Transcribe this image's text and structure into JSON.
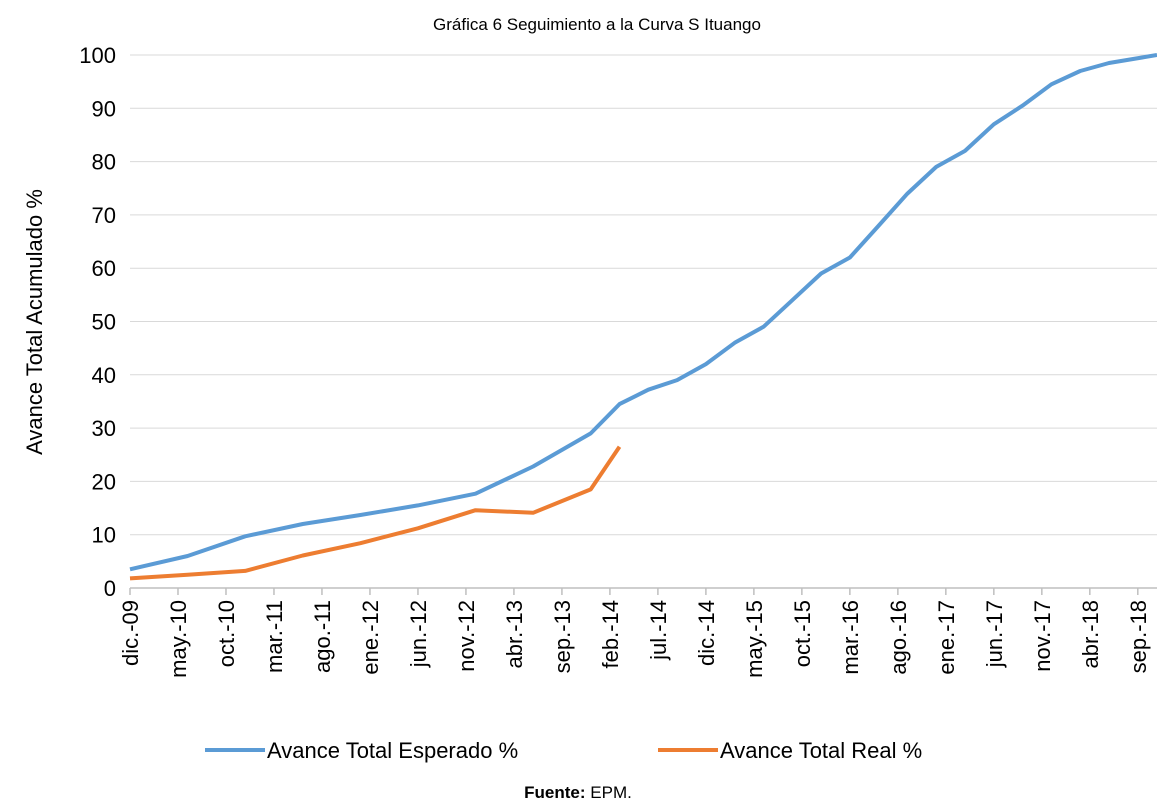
{
  "chart_data": {
    "type": "line",
    "title": "Gráfica 6 Seguimiento a la Curva S Ituango",
    "y_label": "Avance Total Acumulado %",
    "ylim": [
      0,
      100
    ],
    "yticks": [
      0,
      10,
      20,
      30,
      40,
      50,
      60,
      70,
      80,
      90,
      100
    ],
    "grid": true,
    "xlim": [
      "dic.-09",
      "nov.-18"
    ],
    "xticks": [
      "dic.-09",
      "may.-10",
      "oct.-10",
      "mar.-11",
      "ago.-11",
      "ene.-12",
      "jun.-12",
      "nov.-12",
      "abr.-13",
      "sep.-13",
      "feb.-14",
      "jul.-14",
      "dic.-14",
      "may.-15",
      "oct.-15",
      "mar.-16",
      "ago.-16",
      "ene.-17",
      "jun.-17",
      "nov.-17",
      "abr.-18",
      "sep.-18"
    ],
    "legend": "bottom",
    "series": [
      {
        "name": "Avance Total Esperado %",
        "color": "#5b9bd5",
        "x": [
          "dic.-09",
          "jun.-10",
          "dic.-10",
          "jun.-11",
          "dic.-11",
          "jun.-12",
          "dic.-12",
          "jun.-13",
          "dic.-13",
          "mar.-14",
          "jun.-14",
          "sep.-14",
          "dic.-14",
          "mar.-15",
          "jun.-15",
          "sep.-15",
          "dic.-15",
          "mar.-16",
          "jun.-16",
          "sep.-16",
          "dic.-16",
          "mar.-17",
          "jun.-17",
          "sep.-17",
          "dic.-17",
          "mar.-18",
          "jun.-18",
          "nov.-18"
        ],
        "values": [
          3.5,
          6,
          9.7,
          12,
          13.7,
          15.5,
          17.7,
          22.8,
          29,
          34.5,
          37.2,
          39,
          42,
          46,
          49,
          54,
          59,
          62,
          68,
          74,
          79,
          82,
          87,
          90.5,
          94.5,
          97,
          98.5,
          100
        ]
      },
      {
        "name": "Avance Total Real %",
        "color": "#ed7d31",
        "x": [
          "dic.-09",
          "jun.-10",
          "dic.-10",
          "jun.-11",
          "dic.-11",
          "jun.-12",
          "dic.-12",
          "jun.-13",
          "dic.-13",
          "mar.-14"
        ],
        "values": [
          1.8,
          2.5,
          3.2,
          6.1,
          8.4,
          11.2,
          14.6,
          14.1,
          18.5,
          26.5
        ]
      }
    ]
  },
  "source": {
    "label": "Fuente:",
    "text": "EPM."
  }
}
